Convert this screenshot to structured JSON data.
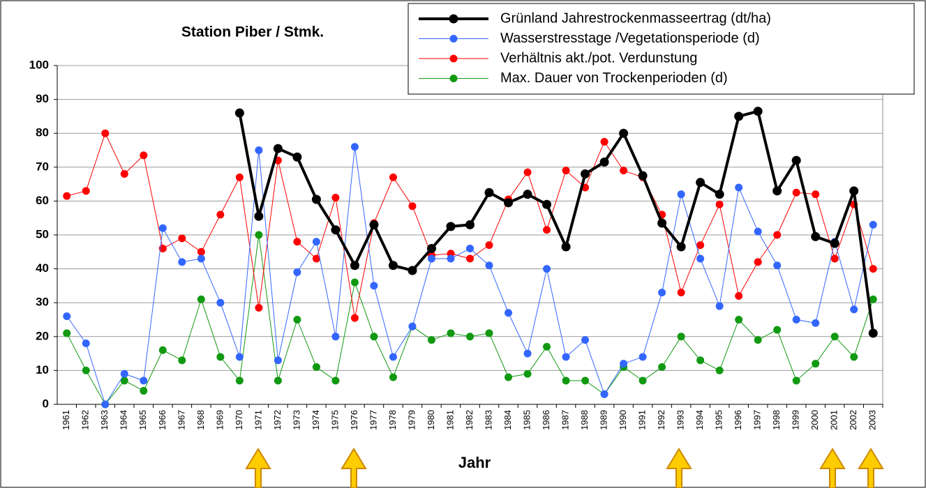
{
  "chart_data": {
    "type": "line",
    "title": "Station Piber / Stmk.",
    "x_label": "Jahr",
    "categories": [
      "1961",
      "1962",
      "1963",
      "1964",
      "1965",
      "1966",
      "1967",
      "1968",
      "1969",
      "1970",
      "1971",
      "1972",
      "1973",
      "1974",
      "1975",
      "1976",
      "1977",
      "1978",
      "1979",
      "1980",
      "1981",
      "1982",
      "1983",
      "1984",
      "1985",
      "1986",
      "1987",
      "1988",
      "1989",
      "1990",
      "1991",
      "1992",
      "1993",
      "1994",
      "1995",
      "1996",
      "1997",
      "1998",
      "1999",
      "2000",
      "2001",
      "2002",
      "2003"
    ],
    "ylim": [
      0,
      100
    ],
    "yticks": [
      0,
      10,
      20,
      30,
      40,
      50,
      60,
      70,
      80,
      90,
      100
    ],
    "grid": true,
    "legend": "top-right",
    "series": [
      {
        "name": "Grünland Jahrestrockenmasseertrag (dt/ha)",
        "color": "#000000",
        "values": [
          null,
          null,
          null,
          null,
          null,
          null,
          null,
          null,
          null,
          86,
          55.5,
          75.5,
          73,
          60.5,
          51.5,
          41,
          53,
          41,
          39.5,
          46,
          52.5,
          53,
          62.5,
          59.5,
          62,
          59,
          46.5,
          68,
          71.5,
          80,
          67.5,
          53.5,
          46.5,
          65.5,
          62,
          85,
          86.5,
          63,
          72,
          49.5,
          47.5,
          63,
          21
        ]
      },
      {
        "name": "Wasserstresstage /Vegetationsperiode (d)",
        "color": "#3366ff",
        "values": [
          26,
          18,
          0,
          9,
          7,
          52,
          42,
          43,
          30,
          14,
          75,
          13,
          39,
          48,
          20,
          76,
          35,
          14,
          23,
          43,
          43,
          46,
          41,
          27,
          15,
          40,
          14,
          19,
          3,
          12,
          14,
          33,
          62,
          43,
          29,
          64,
          51,
          41,
          25,
          24,
          48,
          28,
          53
        ]
      },
      {
        "name": "Verhältnis akt./pot. Verdunstung",
        "color": "#ff0000",
        "values": [
          61.5,
          63,
          80,
          68,
          73.5,
          46,
          49,
          45,
          56,
          67,
          28.5,
          72,
          48,
          43,
          61,
          25.5,
          53.5,
          67,
          58.5,
          44,
          44.5,
          43,
          47,
          60.5,
          68.5,
          51.5,
          69,
          64,
          77.5,
          69,
          67,
          56,
          33,
          47,
          59,
          32,
          42,
          50,
          62.5,
          62,
          43,
          59,
          40
        ]
      },
      {
        "name": "Max. Dauer von Trockenperioden (d)",
        "color": "#119911",
        "values": [
          21,
          10,
          0,
          7,
          4,
          16,
          13,
          31,
          14,
          7,
          50,
          7,
          25,
          11,
          7,
          36,
          20,
          8,
          23,
          19,
          21,
          20,
          21,
          8,
          9,
          17,
          7,
          7,
          3,
          11,
          7,
          11,
          20,
          13,
          10,
          25,
          19,
          22,
          7,
          12,
          20,
          14,
          31
        ]
      }
    ]
  }
}
